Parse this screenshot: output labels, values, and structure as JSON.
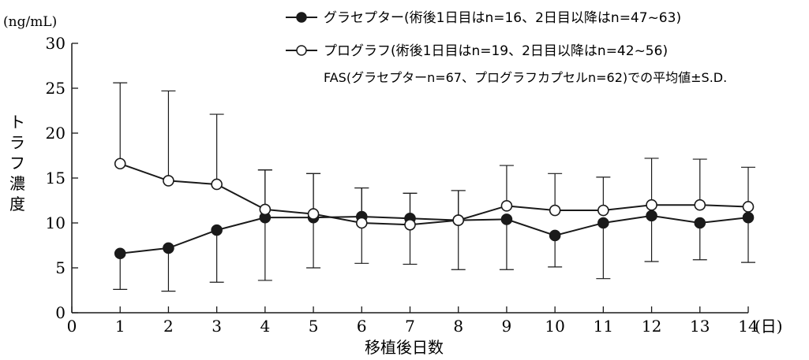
{
  "chart_data": {
    "type": "line",
    "x": [
      1,
      2,
      3,
      4,
      5,
      6,
      7,
      8,
      9,
      10,
      11,
      12,
      13,
      14
    ],
    "xlim": [
      0,
      14
    ],
    "ylim": [
      0,
      30
    ],
    "x_ticks": [
      0,
      1,
      2,
      3,
      4,
      5,
      6,
      7,
      8,
      9,
      10,
      11,
      12,
      13,
      14
    ],
    "y_ticks": [
      0,
      5,
      10,
      15,
      20,
      25,
      30
    ],
    "x_tick_labels": [
      "0",
      "1",
      "2",
      "3",
      "4",
      "5",
      "6",
      "7",
      "8",
      "9",
      "10",
      "11",
      "12",
      "13",
      "14"
    ],
    "y_tick_labels": [
      "0",
      "5",
      "10",
      "15",
      "20",
      "25",
      "30"
    ],
    "xlabel": "移植後日数",
    "x_unit": "(日)",
    "ylabel": "トラフ濃度",
    "y_unit": "(ng/mL)",
    "grid": false,
    "legend_position": "top-right",
    "note": "FAS(グラセプターn=67、プログラフカプセルn=62)での平均値±S.D.",
    "series": [
      {
        "name": "グラセプター(術後1日目はn=16、2日目以降はn=47~63)",
        "marker": "filled-circle",
        "color": "#1a1a1a",
        "values": [
          6.6,
          7.2,
          9.2,
          10.6,
          10.6,
          10.7,
          10.5,
          10.3,
          10.4,
          8.6,
          10.0,
          10.8,
          10.0,
          10.6
        ],
        "error_low": [
          2.6,
          2.4,
          3.4,
          3.6,
          5.0,
          5.5,
          5.4,
          4.8,
          4.8,
          5.1,
          3.8,
          5.7,
          5.9,
          5.6
        ],
        "error_high": [
          null,
          null,
          null,
          15.9,
          15.5,
          13.9,
          13.3,
          13.6,
          null,
          null,
          null,
          null,
          null,
          null
        ]
      },
      {
        "name": "プログラフ(術後1日目はn=19、2日目以降はn=42~56)",
        "marker": "open-circle",
        "color": "#1a1a1a",
        "values": [
          16.6,
          14.7,
          14.3,
          11.5,
          11.0,
          10.0,
          9.8,
          10.3,
          11.9,
          11.4,
          11.4,
          12.0,
          12.0,
          11.8
        ],
        "error_low": [
          null,
          null,
          null,
          null,
          null,
          null,
          null,
          null,
          null,
          null,
          null,
          null,
          null,
          null
        ],
        "error_high": [
          25.6,
          24.7,
          22.1,
          15.9,
          15.5,
          13.9,
          13.3,
          13.6,
          16.4,
          15.5,
          15.1,
          17.2,
          17.1,
          16.2
        ]
      }
    ]
  }
}
